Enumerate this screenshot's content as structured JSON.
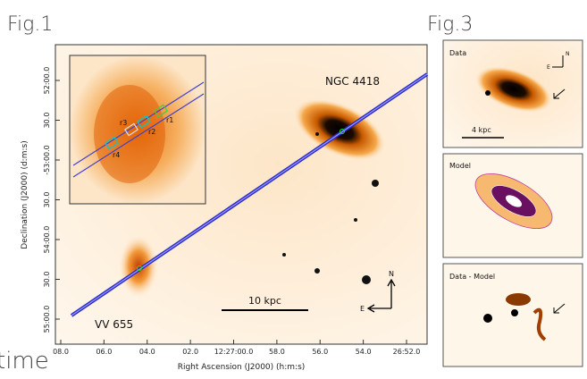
{
  "fig1": {
    "title": "Fig.1",
    "labels": {
      "ngc": "NGC 4418",
      "vv": "VV 655",
      "scale": "10 kpc",
      "north": "N",
      "east": "E"
    },
    "x_axis": {
      "label": "Right Ascension (J2000) (h:m:s)",
      "ticks": [
        "08.0",
        "06.0",
        "04.0",
        "02.0",
        "12:27:00.0",
        "58.0",
        "56.0",
        "54.0",
        "26:52.0"
      ]
    },
    "y_axis": {
      "label": "Declination (J2000) (d:m:s)",
      "ticks": [
        "52:00.0",
        "30.0",
        "-53:00.0",
        "30.0",
        "54:00.0",
        "30.0",
        "55:00.0"
      ]
    },
    "inset": {
      "regions": [
        "r1",
        "r2",
        "r3",
        "r4"
      ]
    }
  },
  "fig3": {
    "title": "Fig.3",
    "panels": [
      {
        "label": "Data",
        "scale": "4 kpc",
        "north": "N",
        "east": "E"
      },
      {
        "label": "Model"
      },
      {
        "label": "Data - Model"
      }
    ]
  },
  "side_text": "time"
}
